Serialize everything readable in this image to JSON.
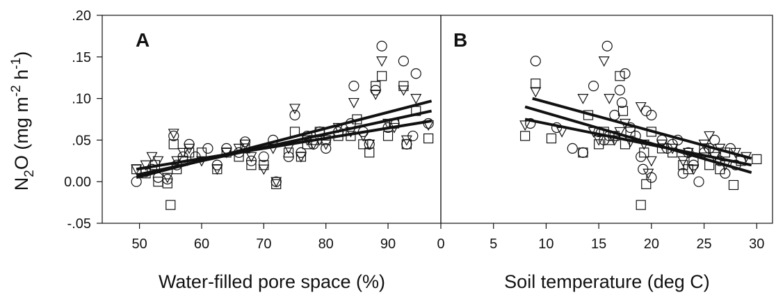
{
  "chart_data": [
    {
      "type": "scatter",
      "panel_label": "A",
      "xlabel": "Water-filled pore space (%)",
      "ylabel_main": "N",
      "ylabel_sub": "2",
      "ylabel_mid": "O (mg m",
      "ylabel_sup1": "-2",
      "ylabel_mid2": " h",
      "ylabel_sup2": "-1",
      "ylabel_end": ")",
      "xlim": [
        44,
        98.5
      ],
      "ylim": [
        -0.05,
        0.2
      ],
      "xticks": [
        50,
        60,
        70,
        80,
        90
      ],
      "xtick_labels": [
        "50",
        "60",
        "70",
        "80",
        "90"
      ],
      "yticks": [
        -0.05,
        0.0,
        0.05,
        0.1,
        0.15,
        0.2
      ],
      "ytick_labels": [
        "-.05",
        "0.00",
        ".05",
        ".10",
        ".15",
        ".20"
      ],
      "series": [
        {
          "marker": "circle",
          "points": [
            [
              49.5,
              0.0
            ],
            [
              51,
              0.012
            ],
            [
              52,
              0.015
            ],
            [
              53,
              0.005
            ],
            [
              54.5,
              0.003
            ],
            [
              55.5,
              0.055
            ],
            [
              56,
              0.02
            ],
            [
              57,
              0.03
            ],
            [
              58,
              0.045
            ],
            [
              59,
              0.03
            ],
            [
              61,
              0.04
            ],
            [
              62.5,
              0.02
            ],
            [
              64,
              0.04
            ],
            [
              66,
              0.035
            ],
            [
              67,
              0.048
            ],
            [
              68,
              0.025
            ],
            [
              70,
              0.03
            ],
            [
              71.5,
              0.05
            ],
            [
              72,
              0.0
            ],
            [
              74,
              0.03
            ],
            [
              75,
              0.08
            ],
            [
              76,
              0.035
            ],
            [
              77,
              0.055
            ],
            [
              78,
              0.045
            ],
            [
              79,
              0.06
            ],
            [
              80,
              0.04
            ],
            [
              82,
              0.06
            ],
            [
              84,
              0.07
            ],
            [
              84.5,
              0.115
            ],
            [
              86,
              0.06
            ],
            [
              87,
              0.045
            ],
            [
              88,
              0.11
            ],
            [
              89,
              0.163
            ],
            [
              90,
              0.065
            ],
            [
              91,
              0.07
            ],
            [
              92.5,
              0.145
            ],
            [
              93,
              0.045
            ],
            [
              94,
              0.055
            ],
            [
              94.5,
              0.13
            ],
            [
              96.5,
              0.07
            ]
          ]
        },
        {
          "marker": "square",
          "points": [
            [
              49.5,
              0.015
            ],
            [
              51,
              0.01
            ],
            [
              52.5,
              0.02
            ],
            [
              53,
              0.0
            ],
            [
              54.5,
              -0.002
            ],
            [
              55,
              -0.028
            ],
            [
              55.5,
              0.045
            ],
            [
              56,
              0.015
            ],
            [
              57,
              0.025
            ],
            [
              58,
              0.035
            ],
            [
              60,
              0.035
            ],
            [
              62.5,
              0.015
            ],
            [
              64,
              0.035
            ],
            [
              66,
              0.03
            ],
            [
              67,
              0.04
            ],
            [
              68,
              0.02
            ],
            [
              70,
              0.02
            ],
            [
              72,
              -0.003
            ],
            [
              74,
              0.035
            ],
            [
              75,
              0.06
            ],
            [
              76,
              0.03
            ],
            [
              77,
              0.045
            ],
            [
              78,
              0.05
            ],
            [
              79,
              0.06
            ],
            [
              80,
              0.05
            ],
            [
              82,
              0.055
            ],
            [
              84,
              0.055
            ],
            [
              85,
              0.075
            ],
            [
              86,
              0.045
            ],
            [
              87,
              0.035
            ],
            [
              88,
              0.115
            ],
            [
              89,
              0.127
            ],
            [
              90,
              0.055
            ],
            [
              91,
              0.07
            ],
            [
              92.5,
              0.115
            ],
            [
              93,
              0.045
            ],
            [
              94.5,
              0.085
            ],
            [
              96.5,
              0.052
            ]
          ]
        },
        {
          "marker": "triangle",
          "points": [
            [
              49.5,
              0.015
            ],
            [
              51,
              0.02
            ],
            [
              52,
              0.03
            ],
            [
              53,
              0.025
            ],
            [
              54.5,
              0.005
            ],
            [
              55.5,
              0.058
            ],
            [
              56,
              0.025
            ],
            [
              57,
              0.035
            ],
            [
              58,
              0.04
            ],
            [
              60,
              0.025
            ],
            [
              62.5,
              0.015
            ],
            [
              64,
              0.035
            ],
            [
              66,
              0.04
            ],
            [
              67,
              0.045
            ],
            [
              68,
              0.03
            ],
            [
              70,
              0.015
            ],
            [
              71.5,
              0.04
            ],
            [
              72,
              0.0
            ],
            [
              74,
              0.04
            ],
            [
              75,
              0.088
            ],
            [
              76,
              0.03
            ],
            [
              77,
              0.05
            ],
            [
              78,
              0.045
            ],
            [
              79,
              0.05
            ],
            [
              80,
              0.045
            ],
            [
              82,
              0.065
            ],
            [
              84,
              0.06
            ],
            [
              84.5,
              0.095
            ],
            [
              86,
              0.055
            ],
            [
              87,
              0.045
            ],
            [
              88,
              0.105
            ],
            [
              89,
              0.145
            ],
            [
              90,
              0.07
            ],
            [
              91,
              0.065
            ],
            [
              92.5,
              0.11
            ],
            [
              93,
              0.05
            ],
            [
              94.5,
              0.1
            ],
            [
              96.5,
              0.068
            ]
          ]
        }
      ],
      "fit_lines": [
        {
          "x": [
            49.5,
            97
          ],
          "y": [
            0.005,
            0.097
          ]
        },
        {
          "x": [
            49.5,
            97
          ],
          "y": [
            0.008,
            0.085
          ]
        },
        {
          "x": [
            49.5,
            97
          ],
          "y": [
            0.015,
            0.073
          ]
        }
      ],
      "grid": false
    },
    {
      "type": "scatter",
      "panel_label": "B",
      "xlabel": "Soil temperature (deg C)",
      "xlim": [
        0,
        31.5
      ],
      "ylim": [
        -0.05,
        0.2
      ],
      "xticks": [
        0,
        5,
        10,
        15,
        20,
        25,
        30
      ],
      "xtick_labels": [
        "0",
        "5",
        "10",
        "15",
        "20",
        "25",
        "30"
      ],
      "series": [
        {
          "marker": "circle",
          "points": [
            [
              8.5,
              0.07
            ],
            [
              9,
              0.145
            ],
            [
              11,
              0.065
            ],
            [
              12.5,
              0.04
            ],
            [
              13.5,
              0.035
            ],
            [
              14.5,
              0.115
            ],
            [
              15,
              0.06
            ],
            [
              15.5,
              0.05
            ],
            [
              15.8,
              0.163
            ],
            [
              16,
              0.055
            ],
            [
              16.5,
              0.08
            ],
            [
              17,
              0.11
            ],
            [
              17.2,
              0.095
            ],
            [
              17.5,
              0.13
            ],
            [
              18,
              0.065
            ],
            [
              18.5,
              0.055
            ],
            [
              19,
              0.03
            ],
            [
              19.2,
              0.015
            ],
            [
              19.5,
              0.085
            ],
            [
              20,
              0.08
            ],
            [
              20,
              0.005
            ],
            [
              21,
              0.05
            ],
            [
              21.5,
              0.04
            ],
            [
              22,
              0.045
            ],
            [
              22.5,
              0.05
            ],
            [
              23,
              0.01
            ],
            [
              23.5,
              0.035
            ],
            [
              24,
              0.02
            ],
            [
              24.5,
              0.0
            ],
            [
              25,
              0.035
            ],
            [
              25.5,
              0.04
            ],
            [
              26,
              0.05
            ],
            [
              26.5,
              0.025
            ],
            [
              27,
              0.01
            ],
            [
              27.5,
              0.04
            ],
            [
              28,
              0.02
            ]
          ]
        },
        {
          "marker": "square",
          "points": [
            [
              8,
              0.055
            ],
            [
              9,
              0.118
            ],
            [
              10.5,
              0.052
            ],
            [
              13.5,
              0.035
            ],
            [
              14,
              0.08
            ],
            [
              15,
              0.045
            ],
            [
              15.5,
              0.06
            ],
            [
              16,
              0.05
            ],
            [
              16.5,
              0.055
            ],
            [
              17,
              0.127
            ],
            [
              17.3,
              0.085
            ],
            [
              17.5,
              0.045
            ],
            [
              18,
              0.06
            ],
            [
              19,
              -0.028
            ],
            [
              19.3,
              0.035
            ],
            [
              19.5,
              -0.003
            ],
            [
              20,
              0.06
            ],
            [
              21,
              0.04
            ],
            [
              22,
              0.035
            ],
            [
              23,
              0.02
            ],
            [
              23.5,
              0.015
            ],
            [
              24,
              0.025
            ],
            [
              25,
              0.04
            ],
            [
              25.5,
              0.02
            ],
            [
              26,
              0.035
            ],
            [
              26.5,
              0.015
            ],
            [
              27,
              0.035
            ],
            [
              27.8,
              -0.004
            ],
            [
              28.5,
              0.025
            ],
            [
              30,
              0.027
            ]
          ]
        },
        {
          "marker": "triangle",
          "points": [
            [
              8,
              0.068
            ],
            [
              9,
              0.108
            ],
            [
              11.5,
              0.06
            ],
            [
              13.5,
              0.1
            ],
            [
              14.5,
              0.06
            ],
            [
              15,
              0.05
            ],
            [
              15.5,
              0.145
            ],
            [
              16,
              0.1
            ],
            [
              16.5,
              0.05
            ],
            [
              17,
              0.06
            ],
            [
              17.5,
              0.07
            ],
            [
              18,
              0.048
            ],
            [
              19,
              0.09
            ],
            [
              19.3,
              0.045
            ],
            [
              19.7,
              0.01
            ],
            [
              20,
              0.025
            ],
            [
              21,
              0.045
            ],
            [
              22,
              0.04
            ],
            [
              23,
              0.025
            ],
            [
              23.5,
              0.035
            ],
            [
              24,
              0.015
            ],
            [
              25,
              0.045
            ],
            [
              25.5,
              0.055
            ],
            [
              26,
              0.03
            ],
            [
              26.5,
              0.04
            ],
            [
              27,
              0.02
            ],
            [
              28,
              0.035
            ],
            [
              29,
              0.03
            ]
          ]
        }
      ],
      "fit_lines": [
        {
          "x": [
            8.7,
            29.5
          ],
          "y": [
            0.1,
            0.028
          ]
        },
        {
          "x": [
            8.0,
            29.5
          ],
          "y": [
            0.09,
            0.011
          ]
        },
        {
          "x": [
            8.0,
            29.5
          ],
          "y": [
            0.075,
            0.02
          ]
        }
      ],
      "grid": false
    }
  ]
}
